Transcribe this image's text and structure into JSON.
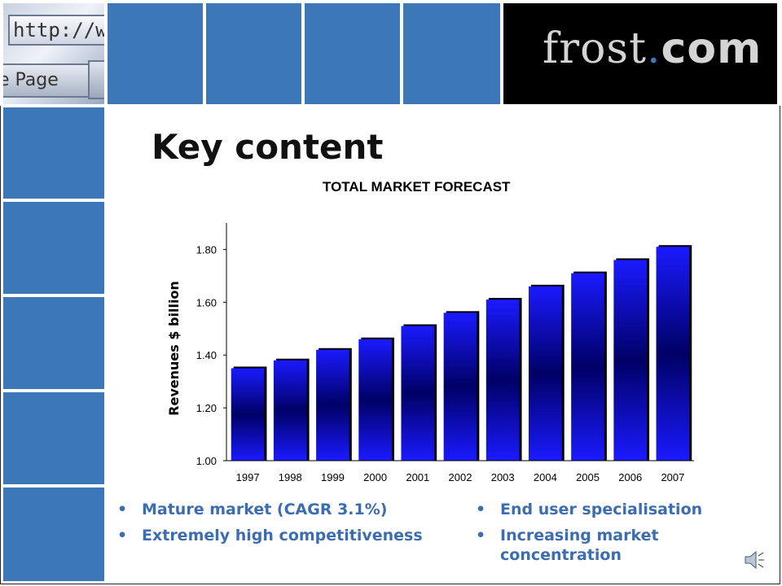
{
  "header": {
    "browser_thumb": {
      "url_text": "http://wv",
      "page_text": "e Page"
    },
    "brand": {
      "name_part1": "frost",
      "dot": ".",
      "name_part2": "com"
    }
  },
  "slide": {
    "title": "Key content"
  },
  "chart_data": {
    "type": "bar",
    "title": "TOTAL MARKET FORECAST",
    "xlabel": "",
    "ylabel": "Revenues $ billion",
    "categories": [
      "1997",
      "1998",
      "1999",
      "2000",
      "2001",
      "2002",
      "2003",
      "2004",
      "2005",
      "2006",
      "2007"
    ],
    "values": [
      1.35,
      1.38,
      1.42,
      1.46,
      1.51,
      1.56,
      1.61,
      1.66,
      1.71,
      1.76,
      1.81
    ],
    "ylim": [
      1.0,
      1.9
    ],
    "yticks": [
      "1.00",
      "1.20",
      "1.40",
      "1.60",
      "1.80"
    ],
    "grid": false,
    "colors": {
      "bar_center": "#000066",
      "bar_edge": "#1a1aff",
      "shadow": "#000000"
    }
  },
  "bullets_left": [
    "Mature market (CAGR 3.1%)",
    "Extremely high competitiveness"
  ],
  "bullets_right": [
    "End user specialisation",
    "Increasing market concentration"
  ],
  "colors": {
    "tile_blue": "#3c77b8",
    "bullet_text": "#3c6db0"
  },
  "icons": {
    "speaker": "speaker-icon"
  }
}
